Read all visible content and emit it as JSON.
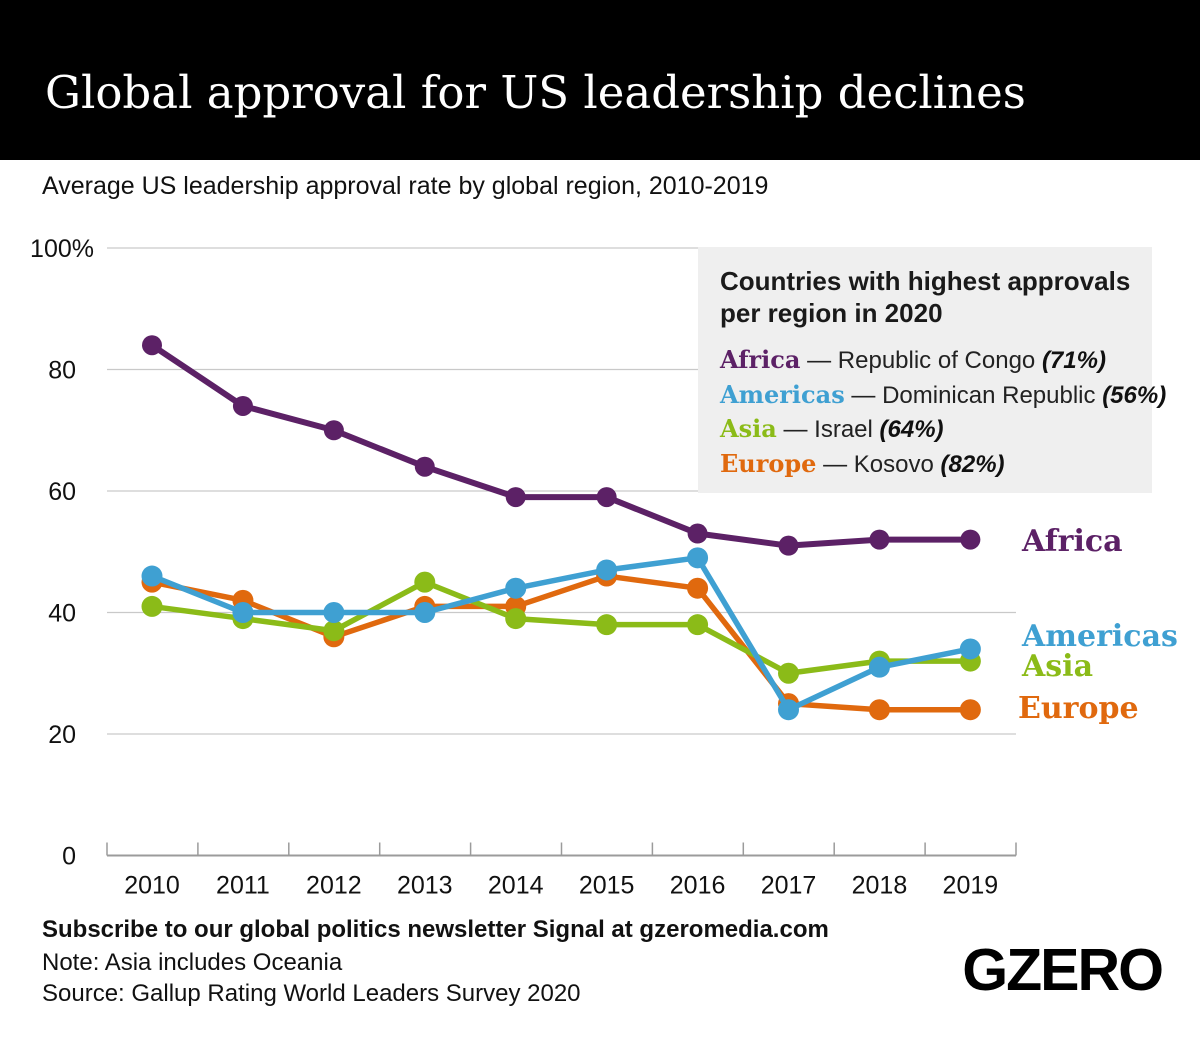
{
  "header": {
    "title": "Global approval for US leadership declines"
  },
  "subtitle": "Average US leadership approval rate by global region, 2010-2019",
  "info_box": {
    "title_line1": "Countries with highest approvals",
    "title_line2": "per region in 2020",
    "entries": [
      {
        "region": "Africa",
        "dash": "—",
        "country": "Republic of Congo",
        "value": "(71%)",
        "color": "#5c2166"
      },
      {
        "region": "Americas",
        "dash": "—",
        "country": "Dominican Republic",
        "value": "(56%)",
        "color": "#3fa0d2"
      },
      {
        "region": "Asia",
        "dash": "—",
        "country": "Israel",
        "value": "(64%)",
        "color": "#8bbb18"
      },
      {
        "region": "Europe",
        "dash": "—",
        "country": "Kosovo",
        "value": "(82%)",
        "color": "#e0690e"
      }
    ]
  },
  "chart_data": {
    "type": "line",
    "title": "Average US leadership approval rate by global region, 2010-2019",
    "x": [
      2010,
      2011,
      2012,
      2013,
      2014,
      2015,
      2016,
      2017,
      2018,
      2019
    ],
    "series": [
      {
        "name": "Africa",
        "color": "#5c2166",
        "values": [
          84,
          74,
          70,
          64,
          59,
          59,
          53,
          51,
          52,
          52
        ]
      },
      {
        "name": "Europe",
        "color": "#e0690e",
        "values": [
          45,
          42,
          36,
          41,
          41,
          46,
          44,
          25,
          24,
          24
        ]
      },
      {
        "name": "Asia",
        "color": "#8bbb18",
        "values": [
          41,
          39,
          37,
          45,
          39,
          38,
          38,
          30,
          32,
          32
        ]
      },
      {
        "name": "Americas",
        "color": "#3fa0d2",
        "values": [
          46,
          40,
          40,
          40,
          44,
          47,
          49,
          24,
          31,
          34
        ]
      }
    ],
    "ylim": [
      0,
      100
    ],
    "yticks": [
      {
        "value": 100,
        "label": "100%"
      },
      {
        "value": 80,
        "label": "80"
      },
      {
        "value": 60,
        "label": "60"
      },
      {
        "value": 40,
        "label": "40"
      },
      {
        "value": 20,
        "label": "20"
      },
      {
        "value": 0,
        "label": "0"
      }
    ],
    "grid": true,
    "legend_position": "right-of-lines",
    "unit": "%"
  },
  "footer": {
    "subscribe": "Subscribe to our global politics newsletter Signal at gzeromedia.com",
    "note": "Note: Asia includes Oceania",
    "source": "Source: Gallup Rating World Leaders Survey 2020"
  },
  "logo": {
    "text": "GZERO"
  }
}
